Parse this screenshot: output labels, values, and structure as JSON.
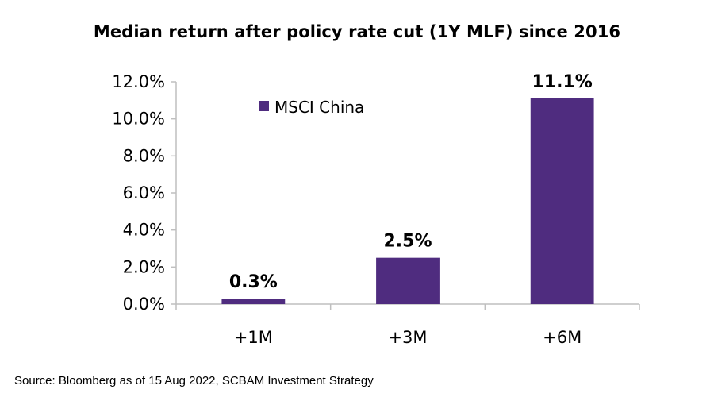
{
  "chart_data": {
    "type": "bar",
    "title": "Median return after policy rate cut (1Y MLF) since 2016",
    "categories": [
      "+1M",
      "+3M",
      "+6M"
    ],
    "series": [
      {
        "name": "MSCI China",
        "values": [
          0.3,
          2.5,
          11.1
        ],
        "labels": [
          "0.3%",
          "2.5%",
          "11.1%"
        ],
        "color": "#4f2c7f"
      }
    ],
    "ylim": [
      0,
      12
    ],
    "yticks": [
      0,
      2,
      4,
      6,
      8,
      10,
      12
    ],
    "ytick_labels": [
      "0.0%",
      "2.0%",
      "4.0%",
      "6.0%",
      "8.0%",
      "10.0%",
      "12.0%"
    ],
    "xlabel": "",
    "ylabel": "",
    "grid": false,
    "legend_position": "top-left inside plot"
  },
  "source": "Source: Bloomberg as of 15 Aug 2022, SCBAM Investment Strategy"
}
